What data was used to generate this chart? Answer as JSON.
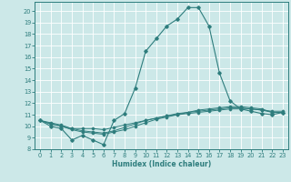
{
  "title": "",
  "xlabel": "Humidex (Indice chaleur)",
  "ylabel": "",
  "background_color": "#cce8e8",
  "grid_color": "#ffffff",
  "line_color": "#2e7d7d",
  "xlim": [
    -0.5,
    23.5
  ],
  "ylim": [
    8,
    20.8
  ],
  "xticks": [
    0,
    1,
    2,
    3,
    4,
    5,
    6,
    7,
    8,
    9,
    10,
    11,
    12,
    13,
    14,
    15,
    16,
    17,
    18,
    19,
    20,
    21,
    22,
    23
  ],
  "yticks": [
    8,
    9,
    10,
    11,
    12,
    13,
    14,
    15,
    16,
    17,
    18,
    19,
    20
  ],
  "series": [
    {
      "x": [
        0,
        1,
        2,
        3,
        4,
        5,
        6,
        7,
        8,
        9,
        10,
        11,
        12,
        13,
        14,
        15,
        16,
        17,
        18,
        19,
        20,
        21,
        22,
        23
      ],
      "y": [
        10.5,
        10.0,
        9.8,
        8.8,
        9.2,
        8.8,
        8.4,
        10.5,
        11.1,
        13.3,
        16.5,
        17.6,
        18.7,
        19.3,
        20.3,
        20.3,
        18.7,
        14.6,
        12.2,
        11.5,
        11.3,
        11.1,
        11.0,
        11.2
      ]
    },
    {
      "x": [
        0,
        1,
        2,
        3,
        4,
        5,
        6,
        7,
        8,
        9,
        10,
        11,
        12,
        13,
        14,
        15,
        16,
        17,
        18,
        19,
        20,
        21,
        22,
        23
      ],
      "y": [
        10.5,
        10.2,
        10.0,
        9.8,
        9.8,
        9.8,
        9.7,
        9.9,
        10.1,
        10.3,
        10.5,
        10.7,
        10.9,
        11.0,
        11.2,
        11.4,
        11.5,
        11.6,
        11.7,
        11.7,
        11.6,
        11.5,
        11.2,
        11.2
      ]
    },
    {
      "x": [
        0,
        1,
        2,
        3,
        4,
        5,
        6,
        7,
        8,
        9,
        10,
        11,
        12,
        13,
        14,
        15,
        16,
        17,
        18,
        19,
        20,
        21,
        22,
        23
      ],
      "y": [
        10.5,
        10.2,
        10.0,
        9.7,
        9.5,
        9.4,
        9.3,
        9.5,
        9.7,
        10.0,
        10.3,
        10.6,
        10.8,
        11.0,
        11.1,
        11.2,
        11.3,
        11.4,
        11.5,
        11.5,
        11.5,
        11.4,
        11.2,
        11.2
      ]
    },
    {
      "x": [
        0,
        1,
        2,
        3,
        4,
        5,
        6,
        7,
        8,
        9,
        10,
        11,
        12,
        13,
        14,
        15,
        16,
        17,
        18,
        19,
        20,
        21,
        22,
        23
      ],
      "y": [
        10.5,
        10.3,
        10.1,
        9.8,
        9.6,
        9.5,
        9.4,
        9.6,
        9.9,
        10.2,
        10.5,
        10.7,
        10.9,
        11.1,
        11.2,
        11.3,
        11.4,
        11.5,
        11.6,
        11.6,
        11.5,
        11.4,
        11.3,
        11.3
      ]
    }
  ]
}
